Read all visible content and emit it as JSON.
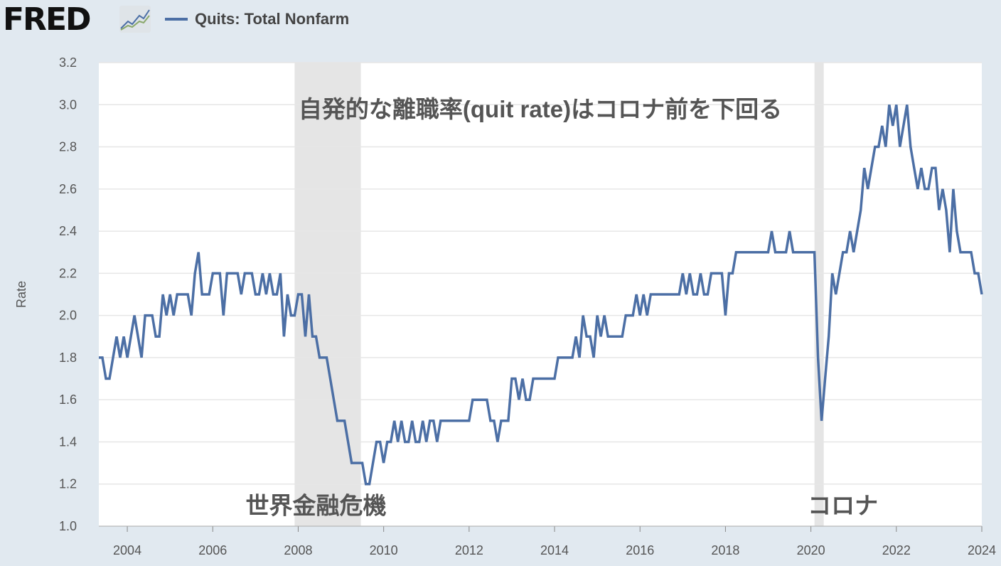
{
  "header": {
    "logo": "FRED",
    "legend_label": "Quits: Total Nonfarm",
    "logo_icon": "line-chart-icon"
  },
  "colors": {
    "series": "#4c6fa5",
    "recession": "#e5e5e5",
    "grid": "#e6e6e6",
    "annotation": "#555555"
  },
  "chart_data": {
    "type": "line",
    "title": "Quits: Total Nonfarm",
    "xlabel": "",
    "ylabel": "Rate",
    "ylim": [
      1.0,
      3.2
    ],
    "xlim": [
      "2003-05",
      "2024-01"
    ],
    "frequency": "monthly",
    "start": "2003-05",
    "yticks": [
      "1.0",
      "1.2",
      "1.4",
      "1.6",
      "1.8",
      "2.0",
      "2.2",
      "2.4",
      "2.6",
      "2.8",
      "3.0",
      "3.2"
    ],
    "xticks": [
      "2004",
      "2006",
      "2008",
      "2010",
      "2012",
      "2014",
      "2016",
      "2018",
      "2020",
      "2022",
      "2024"
    ],
    "grid": true,
    "legend": "top-left",
    "recessions": [
      [
        "2007-12",
        "2009-06"
      ],
      [
        "2020-02",
        "2020-04"
      ]
    ],
    "annotations": [
      {
        "text": "自発的な離職率(quit rate)はコロナ前を下回る",
        "date": "2013-09",
        "value": 2.98
      },
      {
        "text": "世界金融危機",
        "date": "2008-06",
        "value": 1.1
      },
      {
        "text": "コロナ",
        "date": "2020-10",
        "value": 1.1
      }
    ],
    "series": [
      {
        "name": "Quits: Total Nonfarm",
        "values": [
          1.8,
          1.8,
          1.7,
          1.7,
          1.8,
          1.9,
          1.8,
          1.9,
          1.8,
          1.9,
          2.0,
          1.9,
          1.8,
          2.0,
          2.0,
          2.0,
          1.9,
          1.9,
          2.1,
          2.0,
          2.1,
          2.0,
          2.1,
          2.1,
          2.1,
          2.1,
          2.0,
          2.2,
          2.3,
          2.1,
          2.1,
          2.1,
          2.2,
          2.2,
          2.2,
          2.0,
          2.2,
          2.2,
          2.2,
          2.2,
          2.1,
          2.2,
          2.2,
          2.2,
          2.1,
          2.1,
          2.2,
          2.1,
          2.2,
          2.1,
          2.1,
          2.2,
          1.9,
          2.1,
          2.0,
          2.0,
          2.1,
          2.1,
          1.9,
          2.1,
          1.9,
          1.9,
          1.8,
          1.8,
          1.8,
          1.7,
          1.6,
          1.5,
          1.5,
          1.5,
          1.4,
          1.3,
          1.3,
          1.3,
          1.3,
          1.2,
          1.2,
          1.3,
          1.4,
          1.4,
          1.3,
          1.4,
          1.4,
          1.5,
          1.4,
          1.5,
          1.4,
          1.4,
          1.5,
          1.4,
          1.4,
          1.5,
          1.4,
          1.5,
          1.5,
          1.4,
          1.5,
          1.5,
          1.5,
          1.5,
          1.5,
          1.5,
          1.5,
          1.5,
          1.5,
          1.6,
          1.6,
          1.6,
          1.6,
          1.6,
          1.5,
          1.5,
          1.4,
          1.5,
          1.5,
          1.5,
          1.7,
          1.7,
          1.6,
          1.7,
          1.6,
          1.6,
          1.7,
          1.7,
          1.7,
          1.7,
          1.7,
          1.7,
          1.7,
          1.8,
          1.8,
          1.8,
          1.8,
          1.8,
          1.9,
          1.8,
          2.0,
          1.9,
          1.9,
          1.8,
          2.0,
          1.9,
          2.0,
          1.9,
          1.9,
          1.9,
          1.9,
          1.9,
          2.0,
          2.0,
          2.0,
          2.1,
          2.0,
          2.1,
          2.0,
          2.1,
          2.1,
          2.1,
          2.1,
          2.1,
          2.1,
          2.1,
          2.1,
          2.1,
          2.2,
          2.1,
          2.2,
          2.1,
          2.1,
          2.2,
          2.1,
          2.1,
          2.2,
          2.2,
          2.2,
          2.2,
          2.0,
          2.2,
          2.2,
          2.3,
          2.3,
          2.3,
          2.3,
          2.3,
          2.3,
          2.3,
          2.3,
          2.3,
          2.3,
          2.4,
          2.3,
          2.3,
          2.3,
          2.3,
          2.4,
          2.3,
          2.3,
          2.3,
          2.3,
          2.3,
          2.3,
          2.3,
          1.8,
          1.5,
          1.7,
          1.9,
          2.2,
          2.1,
          2.2,
          2.3,
          2.3,
          2.4,
          2.3,
          2.4,
          2.5,
          2.7,
          2.6,
          2.7,
          2.8,
          2.8,
          2.9,
          2.8,
          3.0,
          2.9,
          3.0,
          2.8,
          2.9,
          3.0,
          2.8,
          2.7,
          2.6,
          2.7,
          2.6,
          2.6,
          2.7,
          2.7,
          2.5,
          2.6,
          2.5,
          2.3,
          2.6,
          2.4,
          2.3,
          2.3,
          2.3,
          2.3,
          2.2,
          2.2,
          2.1
        ]
      }
    ]
  }
}
